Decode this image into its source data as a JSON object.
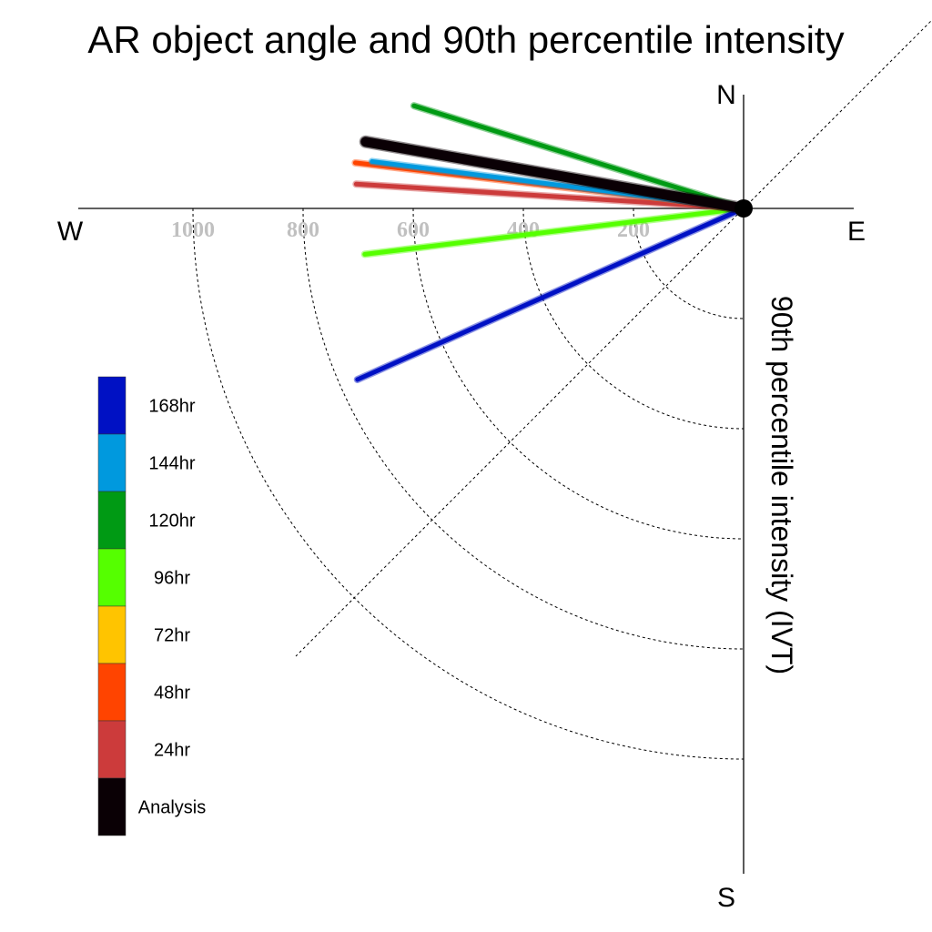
{
  "chart_data": {
    "type": "polar-vector",
    "title": "AR object angle and 90th percentile intensity",
    "radial_label": "90th percentile intensity (IVT)",
    "directions": {
      "north": "N",
      "south": "S",
      "east": "E",
      "west": "W"
    },
    "radial_ticks": [
      200,
      400,
      600,
      800,
      1000
    ],
    "radial_tick_labels": [
      "200",
      "400",
      "600",
      "800",
      "1000"
    ],
    "rmax": 1150,
    "angle_convention": "degrees counter-clockwise from East",
    "series": [
      {
        "name": "Analysis",
        "color": "#0a0005",
        "magnitude": 697,
        "angle_deg": 170.0,
        "width": 11
      },
      {
        "name": "24hr",
        "color": "#cc3b3b",
        "magnitude": 705,
        "angle_deg": 176.4,
        "width": 5
      },
      {
        "name": "48hr",
        "color": "#ff4400",
        "magnitude": 710,
        "angle_deg": 173.3,
        "width": 5
      },
      {
        "name": "72hr",
        "color": "#ffc400",
        "magnitude": null,
        "angle_deg": null,
        "width": 5
      },
      {
        "name": "96hr",
        "color": "#55ff00",
        "magnitude": 693,
        "angle_deg": 186.9,
        "width": 5
      },
      {
        "name": "120hr",
        "color": "#009a14",
        "magnitude": 627,
        "angle_deg": 162.7,
        "width": 5
      },
      {
        "name": "144hr",
        "color": "#0099de",
        "magnitude": 680,
        "angle_deg": 172.8,
        "width": 5
      },
      {
        "name": "168hr",
        "color": "#0011c4",
        "magnitude": 767,
        "angle_deg": 203.9,
        "width": 5
      }
    ],
    "legend": {
      "placement": "lower-left",
      "items": [
        "168hr",
        "144hr",
        "120hr",
        "96hr",
        "72hr",
        "48hr",
        "24hr",
        "Analysis"
      ]
    },
    "grid": true,
    "grid_style": "dotted quarter arcs in the south-west quadrant with a dotted NE-SW diagonal"
  }
}
